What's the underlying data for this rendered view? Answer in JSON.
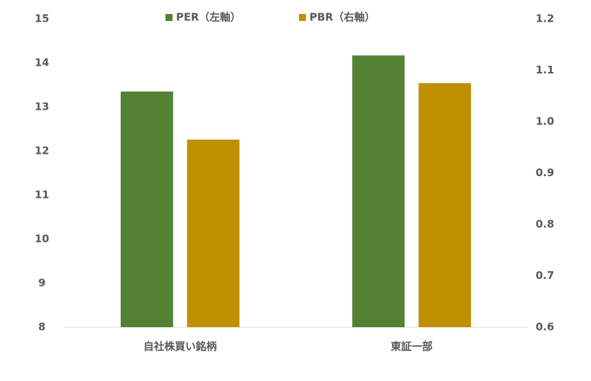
{
  "chart_data": {
    "type": "bar",
    "categories": [
      "自社株買い銘柄",
      "東証一部"
    ],
    "series": [
      {
        "name": "PER（左軸）",
        "color": "#548235",
        "values": [
          13.35,
          14.17
        ]
      },
      {
        "name": "PBR（右軸）",
        "color": "#bf9000",
        "values": [
          0.965,
          1.075
        ],
        "axis": "y2"
      }
    ],
    "ylim": [
      8,
      15
    ],
    "yticks": [
      8,
      9,
      10,
      11,
      12,
      13,
      14,
      15
    ],
    "y2lim": [
      0.6,
      1.2
    ],
    "y2ticks": [
      0.6,
      0.7,
      0.8,
      0.9,
      {
        "value": 1,
        "label": "1.0"
      },
      1.1,
      1.2
    ],
    "grid": false,
    "legend": "top"
  }
}
